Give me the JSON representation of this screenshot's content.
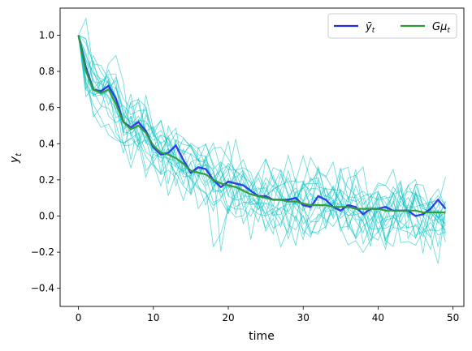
{
  "chart_data": {
    "type": "line",
    "title": "",
    "xlabel": "time",
    "ylabel": "y_t",
    "xlim": [
      -2.45,
      51.45
    ],
    "ylim": [
      -0.5,
      1.15
    ],
    "xticks": [
      0,
      10,
      20,
      30,
      40,
      50
    ],
    "yticks": [
      -0.4,
      -0.2,
      0.0,
      0.2,
      0.4,
      0.6,
      0.8,
      1.0
    ],
    "xtick_labels": [
      "0",
      "10",
      "20",
      "30",
      "40",
      "50"
    ],
    "ytick_labels": [
      "−0.4",
      "−0.2",
      "0.0",
      "0.2",
      "0.4",
      "0.6",
      "0.8",
      "1.0"
    ],
    "grid": false,
    "legend_position": "top-right",
    "colors": {
      "sample_paths": "#00bfbf",
      "ybar": "#1f2ee6",
      "gmu": "#2e9b34"
    },
    "x": [
      0,
      1,
      2,
      3,
      4,
      5,
      6,
      7,
      8,
      9,
      10,
      11,
      12,
      13,
      14,
      15,
      16,
      17,
      18,
      19,
      20,
      21,
      22,
      23,
      24,
      25,
      26,
      27,
      28,
      29,
      30,
      31,
      32,
      33,
      34,
      35,
      36,
      37,
      38,
      39,
      40,
      41,
      42,
      43,
      44,
      45,
      46,
      47,
      48,
      49
    ],
    "series": [
      {
        "name": "ȳ",
        "name_subscript": "t",
        "values": [
          1.0,
          0.82,
          0.7,
          0.69,
          0.72,
          0.65,
          0.52,
          0.49,
          0.52,
          0.47,
          0.38,
          0.34,
          0.35,
          0.39,
          0.31,
          0.24,
          0.27,
          0.26,
          0.2,
          0.16,
          0.19,
          0.18,
          0.17,
          0.14,
          0.11,
          0.11,
          0.09,
          0.09,
          0.09,
          0.1,
          0.06,
          0.05,
          0.11,
          0.09,
          0.05,
          0.03,
          0.06,
          0.05,
          0.01,
          0.04,
          0.04,
          0.05,
          0.03,
          0.03,
          0.03,
          0.0,
          0.01,
          0.04,
          0.09,
          0.04
        ]
      },
      {
        "name": "Gμ",
        "name_subscript": "t",
        "values": [
          1.0,
          0.8,
          0.7,
          0.68,
          0.7,
          0.62,
          0.52,
          0.48,
          0.5,
          0.46,
          0.39,
          0.35,
          0.34,
          0.32,
          0.29,
          0.25,
          0.24,
          0.23,
          0.2,
          0.18,
          0.17,
          0.16,
          0.14,
          0.12,
          0.11,
          0.1,
          0.09,
          0.09,
          0.08,
          0.08,
          0.07,
          0.06,
          0.06,
          0.06,
          0.05,
          0.05,
          0.05,
          0.04,
          0.04,
          0.04,
          0.04,
          0.03,
          0.03,
          0.03,
          0.03,
          0.03,
          0.02,
          0.02,
          0.02,
          0.02
        ]
      }
    ],
    "sample_path_count": 20
  }
}
